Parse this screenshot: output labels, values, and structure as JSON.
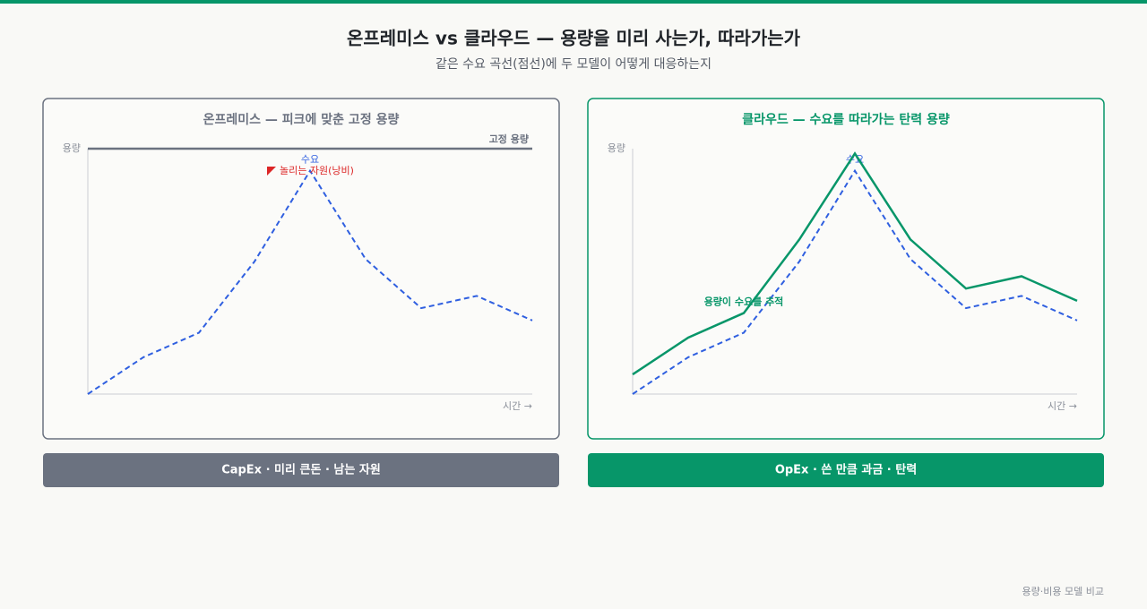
{
  "title": "온프레미스 vs 클라우드 — 용량을 미리 사는가, 따라가는가",
  "subtitle": "같은 수요 곡선(점선)에 두 모델이 어떻게 대응하는지",
  "footer": "용량·비용 모델 비교",
  "chart_data": [
    {
      "type": "line",
      "title": "온프레미스 — 피크에 맞춘 고정 용량",
      "color": "#6b7280",
      "y_label": "용량",
      "x_label": "시간 →",
      "categories": [
        null,
        null,
        null,
        null,
        null,
        null,
        null,
        null,
        null
      ],
      "ylim": [
        0,
        100
      ],
      "series": [
        {
          "name": "수요",
          "color": "#2f5fe0",
          "dashed": true,
          "values": [
            0,
            15,
            25,
            54,
            91,
            55,
            35,
            40,
            30
          ]
        },
        {
          "name": "고정 용량",
          "color": "#6b7280",
          "dashed": false,
          "values": [
            100,
            100,
            100,
            100,
            100,
            100,
            100,
            100,
            100
          ]
        }
      ],
      "annotation": {
        "text": "놀리는 자원(낭비)",
        "color": "#dc2626"
      },
      "caption": "CapEx · 미리 큰돈 · 남는 자원"
    },
    {
      "type": "line",
      "title": "클라우드 — 수요를 따라가는 탄력 용량",
      "color": "#079669",
      "y_label": "용량",
      "x_label": "시간 →",
      "categories": [
        null,
        null,
        null,
        null,
        null,
        null,
        null,
        null,
        null
      ],
      "ylim": [
        0,
        100
      ],
      "series": [
        {
          "name": "수요",
          "color": "#2f5fe0",
          "dashed": true,
          "values": [
            0,
            15,
            25,
            54,
            91,
            55,
            35,
            40,
            30
          ]
        },
        {
          "name": "용량이 수요를 추적",
          "color": "#079669",
          "dashed": false,
          "values": [
            8,
            23,
            33,
            63,
            98,
            63,
            43,
            48,
            38
          ]
        }
      ],
      "caption": "OpEx · 쓴 만큼 과금 · 탄력"
    }
  ]
}
